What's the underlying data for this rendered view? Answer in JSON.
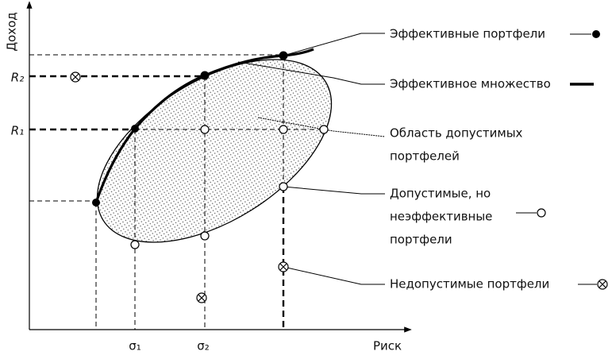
{
  "axes": {
    "y_label": "Доход",
    "x_label": "Риск"
  },
  "y_ticks": [
    "R₂",
    "R₁"
  ],
  "x_ticks": [
    "σ₁",
    "σ₂"
  ],
  "legend": [
    {
      "lines": [
        "Эффективные портфели"
      ]
    },
    {
      "lines": [
        "Эффективное множество"
      ]
    },
    {
      "lines": [
        "Область допустимых",
        "портфелей"
      ]
    },
    {
      "lines": [
        "Допустимые, но",
        "неэффективные",
        "портфели"
      ]
    },
    {
      "lines": [
        "Недопустимые портфели"
      ]
    }
  ]
}
